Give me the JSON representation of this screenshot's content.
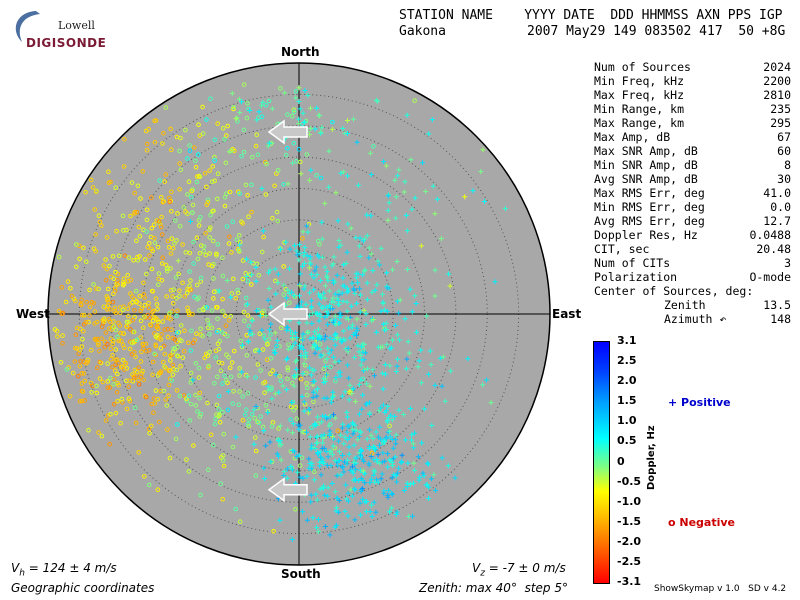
{
  "logo": {
    "line1": "Lowell",
    "line2": "DIGISONDE"
  },
  "header": {
    "row1": "STATION NAME    YYYY DATE  DDD HHMMSS AXN PPS IGP",
    "station": "Gakona",
    "values": "2007 May29 149 083502 417  50 +8G"
  },
  "stats": [
    {
      "k": "Num of Sources",
      "v": "2024"
    },
    {
      "k": "Min Freq, kHz",
      "v": "2200"
    },
    {
      "k": "Max Freq, kHz",
      "v": "2810"
    },
    {
      "k": "Min Range, km",
      "v": "235"
    },
    {
      "k": "Max Range, km",
      "v": "295"
    },
    {
      "k": "Max Amp, dB",
      "v": "67"
    },
    {
      "k": "Max SNR Amp, dB",
      "v": "60"
    },
    {
      "k": "Min SNR Amp, dB",
      "v": "8"
    },
    {
      "k": "Avg SNR Amp, dB",
      "v": "30"
    },
    {
      "k": "Max RMS Err, deg",
      "v": "41.0"
    },
    {
      "k": "Min RMS Err, deg",
      "v": "0.0"
    },
    {
      "k": "Avg RMS Err, deg",
      "v": "12.7"
    },
    {
      "k": "Doppler Res, Hz",
      "v": "0.0488"
    },
    {
      "k": "CIT, sec",
      "v": "20.48"
    },
    {
      "k": "Num of CITs",
      "v": "3"
    },
    {
      "k": "Polarization",
      "v": "O-mode"
    },
    {
      "k": "Center of Sources, deg:",
      "v": ""
    },
    {
      "k": "Zenith",
      "v": "13.5",
      "indent": true
    },
    {
      "k": "Azimuth ↶",
      "v": "148",
      "indent": true
    }
  ],
  "directions": {
    "north": "North",
    "south": "South",
    "east": "East",
    "west": "West"
  },
  "bottom": {
    "vh_prefix": "V",
    "vh_sub": "h",
    "vh_rest": " = 124 ± 4 m/s",
    "vz_prefix": "V",
    "vz_sub": "z",
    "vz_rest": " = -7 ± 0 m/s",
    "coords": "Geographic coordinates",
    "zenith": "Zenith: max 40°  step 5°"
  },
  "colorbar": {
    "title": "Doppler, Hz",
    "ticks": [
      "3.1",
      "2.5",
      "2.0",
      "1.5",
      "1.0",
      "0.5",
      "0",
      "-0.5",
      "-1.0",
      "-1.5",
      "-2.0",
      "-2.5",
      "-3.1"
    ],
    "positive_label": "+ Positive",
    "negative_label": "o Negative",
    "positive_color": "#0000cc",
    "negative_color": "#cc0000"
  },
  "version": "ShowSkymap v 1.0   SD v 4.2",
  "chart_data": {
    "type": "scatter",
    "projection": "polar skymap",
    "zenith_max_deg": 40,
    "zenith_step_deg": 5,
    "background": "#a8a8a8",
    "arrows": [
      {
        "zenith_deg": 29,
        "azimuth_deg": 0,
        "direction": "west"
      },
      {
        "zenith_deg": 0,
        "azimuth_deg": 0,
        "direction": "west"
      },
      {
        "zenith_deg": 28,
        "azimuth_deg": 180,
        "direction": "west"
      }
    ],
    "clusters": [
      {
        "marker": "o",
        "cx": -28,
        "cy": -5,
        "sx": 7,
        "sy": 6,
        "n": 380,
        "doppler": -1.0
      },
      {
        "marker": "o",
        "cx": -18,
        "cy": 8,
        "sx": 9,
        "sy": 8,
        "n": 260,
        "doppler": -0.5
      },
      {
        "marker": "o",
        "cx": -10,
        "cy": -12,
        "sx": 9,
        "sy": 8,
        "n": 240,
        "doppler": -0.2
      },
      {
        "marker": "o",
        "cx": -22,
        "cy": 22,
        "sx": 8,
        "sy": 8,
        "n": 90,
        "doppler": -0.9
      },
      {
        "marker": "+",
        "cx": 3,
        "cy": 0,
        "sx": 6,
        "sy": 7,
        "n": 340,
        "doppler": 0.6
      },
      {
        "marker": "+",
        "cx": 8,
        "cy": -24,
        "sx": 6,
        "sy": 5,
        "n": 330,
        "doppler": 0.8
      },
      {
        "marker": "+",
        "cx": 10,
        "cy": -10,
        "sx": 8,
        "sy": 7,
        "n": 160,
        "doppler": 0.5
      },
      {
        "marker": "+",
        "cx": 12,
        "cy": 18,
        "sx": 10,
        "sy": 10,
        "n": 100,
        "doppler": 0.3
      },
      {
        "marker": "o",
        "cx": -8,
        "cy": 28,
        "sx": 8,
        "sy": 5,
        "n": 60,
        "doppler": 0.0
      },
      {
        "marker": "+",
        "cx": -2,
        "cy": 30,
        "sx": 5,
        "sy": 4,
        "n": 40,
        "doppler": 0.3
      }
    ]
  }
}
